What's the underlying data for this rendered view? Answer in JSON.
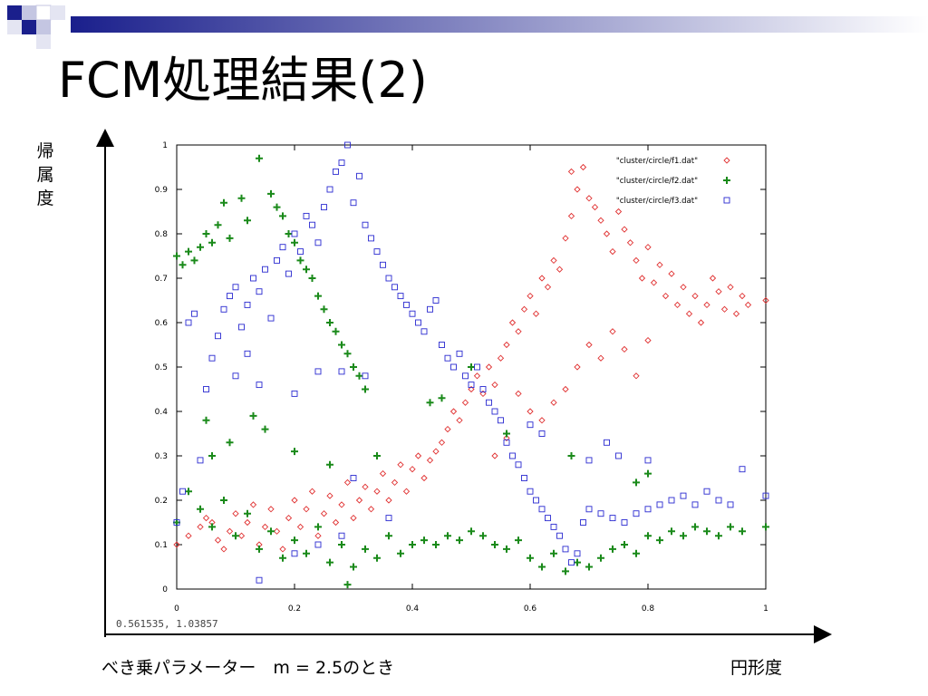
{
  "slide": {
    "title": "FCM処理結果(2)",
    "y_axis_name": "帰属度",
    "x_axis_name": "円形度",
    "coordinate_readout": "0.561535,  1.03857",
    "parameter_note": "べき乗パラメーター　m = 2.5のとき"
  },
  "colors": {
    "decor_blue": "#1a1f8c",
    "decor_light": "#c4c6e2",
    "series_f1": "#e03030",
    "series_f2": "#1a8a1a",
    "series_f3": "#2a2ad0"
  },
  "chart_data": {
    "type": "scatter",
    "xlim": [
      0,
      1
    ],
    "ylim": [
      0,
      1
    ],
    "x_ticks": [
      "0",
      "0.2",
      "0.4",
      "0.6",
      "0.8",
      "1"
    ],
    "y_ticks": [
      "0",
      "0.1",
      "0.2",
      "0.3",
      "0.4",
      "0.5",
      "0.6",
      "0.7",
      "0.8",
      "0.9",
      "1"
    ],
    "legend_position": "top-right",
    "series": [
      {
        "name": "\"cluster/circle/f1.dat\"",
        "marker": "diamond",
        "color": "#e03030",
        "points": [
          [
            0.0,
            0.1
          ],
          [
            0.02,
            0.12
          ],
          [
            0.04,
            0.14
          ],
          [
            0.05,
            0.16
          ],
          [
            0.06,
            0.15
          ],
          [
            0.07,
            0.11
          ],
          [
            0.08,
            0.09
          ],
          [
            0.09,
            0.13
          ],
          [
            0.1,
            0.17
          ],
          [
            0.11,
            0.12
          ],
          [
            0.12,
            0.15
          ],
          [
            0.13,
            0.19
          ],
          [
            0.14,
            0.1
          ],
          [
            0.15,
            0.14
          ],
          [
            0.16,
            0.18
          ],
          [
            0.17,
            0.13
          ],
          [
            0.18,
            0.09
          ],
          [
            0.19,
            0.16
          ],
          [
            0.2,
            0.2
          ],
          [
            0.21,
            0.14
          ],
          [
            0.22,
            0.18
          ],
          [
            0.23,
            0.22
          ],
          [
            0.24,
            0.12
          ],
          [
            0.25,
            0.17
          ],
          [
            0.26,
            0.21
          ],
          [
            0.27,
            0.15
          ],
          [
            0.28,
            0.19
          ],
          [
            0.29,
            0.24
          ],
          [
            0.3,
            0.16
          ],
          [
            0.31,
            0.2
          ],
          [
            0.32,
            0.23
          ],
          [
            0.33,
            0.18
          ],
          [
            0.34,
            0.22
          ],
          [
            0.35,
            0.26
          ],
          [
            0.36,
            0.2
          ],
          [
            0.37,
            0.24
          ],
          [
            0.38,
            0.28
          ],
          [
            0.39,
            0.22
          ],
          [
            0.4,
            0.27
          ],
          [
            0.41,
            0.3
          ],
          [
            0.42,
            0.25
          ],
          [
            0.43,
            0.29
          ],
          [
            0.44,
            0.31
          ],
          [
            0.45,
            0.33
          ],
          [
            0.46,
            0.36
          ],
          [
            0.47,
            0.4
          ],
          [
            0.48,
            0.38
          ],
          [
            0.49,
            0.42
          ],
          [
            0.5,
            0.45
          ],
          [
            0.51,
            0.48
          ],
          [
            0.52,
            0.44
          ],
          [
            0.53,
            0.5
          ],
          [
            0.54,
            0.46
          ],
          [
            0.55,
            0.52
          ],
          [
            0.56,
            0.55
          ],
          [
            0.57,
            0.6
          ],
          [
            0.58,
            0.58
          ],
          [
            0.59,
            0.63
          ],
          [
            0.6,
            0.66
          ],
          [
            0.61,
            0.62
          ],
          [
            0.62,
            0.7
          ],
          [
            0.63,
            0.68
          ],
          [
            0.64,
            0.74
          ],
          [
            0.65,
            0.72
          ],
          [
            0.66,
            0.79
          ],
          [
            0.67,
            0.84
          ],
          [
            0.67,
            0.94
          ],
          [
            0.68,
            0.9
          ],
          [
            0.69,
            0.95
          ],
          [
            0.7,
            0.88
          ],
          [
            0.71,
            0.86
          ],
          [
            0.72,
            0.83
          ],
          [
            0.73,
            0.8
          ],
          [
            0.74,
            0.76
          ],
          [
            0.75,
            0.85
          ],
          [
            0.76,
            0.81
          ],
          [
            0.77,
            0.78
          ],
          [
            0.78,
            0.74
          ],
          [
            0.79,
            0.7
          ],
          [
            0.8,
            0.77
          ],
          [
            0.81,
            0.69
          ],
          [
            0.82,
            0.73
          ],
          [
            0.83,
            0.66
          ],
          [
            0.84,
            0.71
          ],
          [
            0.85,
            0.64
          ],
          [
            0.86,
            0.68
          ],
          [
            0.87,
            0.62
          ],
          [
            0.88,
            0.66
          ],
          [
            0.89,
            0.6
          ],
          [
            0.9,
            0.64
          ],
          [
            0.91,
            0.7
          ],
          [
            0.92,
            0.67
          ],
          [
            0.93,
            0.63
          ],
          [
            0.94,
            0.68
          ],
          [
            0.95,
            0.62
          ],
          [
            0.96,
            0.66
          ],
          [
            0.97,
            0.64
          ],
          [
            1.0,
            0.65
          ],
          [
            0.62,
            0.38
          ],
          [
            0.64,
            0.42
          ],
          [
            0.66,
            0.45
          ],
          [
            0.68,
            0.5
          ],
          [
            0.7,
            0.55
          ],
          [
            0.72,
            0.52
          ],
          [
            0.74,
            0.58
          ],
          [
            0.76,
            0.54
          ],
          [
            0.78,
            0.48
          ],
          [
            0.8,
            0.56
          ],
          [
            0.58,
            0.44
          ],
          [
            0.6,
            0.4
          ],
          [
            0.56,
            0.34
          ],
          [
            0.54,
            0.3
          ]
        ]
      },
      {
        "name": "\"cluster/circle/f2.dat\"",
        "marker": "plus",
        "color": "#1a8a1a",
        "points": [
          [
            0.0,
            0.75
          ],
          [
            0.01,
            0.73
          ],
          [
            0.02,
            0.76
          ],
          [
            0.03,
            0.74
          ],
          [
            0.04,
            0.77
          ],
          [
            0.05,
            0.8
          ],
          [
            0.06,
            0.78
          ],
          [
            0.07,
            0.82
          ],
          [
            0.08,
            0.87
          ],
          [
            0.09,
            0.79
          ],
          [
            0.11,
            0.88
          ],
          [
            0.12,
            0.83
          ],
          [
            0.14,
            0.97
          ],
          [
            0.16,
            0.89
          ],
          [
            0.17,
            0.86
          ],
          [
            0.18,
            0.84
          ],
          [
            0.19,
            0.8
          ],
          [
            0.2,
            0.78
          ],
          [
            0.21,
            0.74
          ],
          [
            0.22,
            0.72
          ],
          [
            0.23,
            0.7
          ],
          [
            0.24,
            0.66
          ],
          [
            0.25,
            0.63
          ],
          [
            0.26,
            0.6
          ],
          [
            0.27,
            0.58
          ],
          [
            0.28,
            0.55
          ],
          [
            0.29,
            0.53
          ],
          [
            0.3,
            0.5
          ],
          [
            0.31,
            0.48
          ],
          [
            0.32,
            0.45
          ],
          [
            0.05,
            0.38
          ],
          [
            0.06,
            0.3
          ],
          [
            0.09,
            0.33
          ],
          [
            0.13,
            0.39
          ],
          [
            0.15,
            0.36
          ],
          [
            0.2,
            0.31
          ],
          [
            0.26,
            0.28
          ],
          [
            0.34,
            0.3
          ],
          [
            0.0,
            0.15
          ],
          [
            0.02,
            0.22
          ],
          [
            0.04,
            0.18
          ],
          [
            0.06,
            0.14
          ],
          [
            0.08,
            0.2
          ],
          [
            0.1,
            0.12
          ],
          [
            0.12,
            0.17
          ],
          [
            0.14,
            0.09
          ],
          [
            0.16,
            0.13
          ],
          [
            0.18,
            0.07
          ],
          [
            0.2,
            0.11
          ],
          [
            0.22,
            0.08
          ],
          [
            0.24,
            0.14
          ],
          [
            0.26,
            0.06
          ],
          [
            0.28,
            0.1
          ],
          [
            0.29,
            0.01
          ],
          [
            0.3,
            0.05
          ],
          [
            0.32,
            0.09
          ],
          [
            0.34,
            0.07
          ],
          [
            0.36,
            0.12
          ],
          [
            0.38,
            0.08
          ],
          [
            0.4,
            0.1
          ],
          [
            0.42,
            0.11
          ],
          [
            0.44,
            0.1
          ],
          [
            0.46,
            0.12
          ],
          [
            0.48,
            0.11
          ],
          [
            0.5,
            0.13
          ],
          [
            0.52,
            0.12
          ],
          [
            0.54,
            0.1
          ],
          [
            0.56,
            0.09
          ],
          [
            0.58,
            0.11
          ],
          [
            0.6,
            0.07
          ],
          [
            0.62,
            0.05
          ],
          [
            0.64,
            0.08
          ],
          [
            0.66,
            0.04
          ],
          [
            0.68,
            0.06
          ],
          [
            0.7,
            0.05
          ],
          [
            0.72,
            0.07
          ],
          [
            0.74,
            0.09
          ],
          [
            0.76,
            0.1
          ],
          [
            0.78,
            0.08
          ],
          [
            0.8,
            0.12
          ],
          [
            0.82,
            0.11
          ],
          [
            0.84,
            0.13
          ],
          [
            0.86,
            0.12
          ],
          [
            0.88,
            0.14
          ],
          [
            0.9,
            0.13
          ],
          [
            0.92,
            0.12
          ],
          [
            0.94,
            0.14
          ],
          [
            0.96,
            0.13
          ],
          [
            1.0,
            0.14
          ],
          [
            0.45,
            0.43
          ],
          [
            0.43,
            0.42
          ],
          [
            0.5,
            0.5
          ],
          [
            0.56,
            0.35
          ],
          [
            0.67,
            0.3
          ],
          [
            0.78,
            0.24
          ],
          [
            0.8,
            0.26
          ]
        ]
      },
      {
        "name": "\"cluster/circle/f3.dat\"",
        "marker": "square",
        "color": "#2a2ad0",
        "points": [
          [
            0.0,
            0.15
          ],
          [
            0.01,
            0.22
          ],
          [
            0.02,
            0.6
          ],
          [
            0.03,
            0.62
          ],
          [
            0.04,
            0.29
          ],
          [
            0.05,
            0.45
          ],
          [
            0.06,
            0.52
          ],
          [
            0.07,
            0.57
          ],
          [
            0.08,
            0.63
          ],
          [
            0.09,
            0.66
          ],
          [
            0.1,
            0.68
          ],
          [
            0.11,
            0.59
          ],
          [
            0.12,
            0.64
          ],
          [
            0.13,
            0.7
          ],
          [
            0.14,
            0.67
          ],
          [
            0.15,
            0.72
          ],
          [
            0.16,
            0.61
          ],
          [
            0.17,
            0.74
          ],
          [
            0.18,
            0.77
          ],
          [
            0.19,
            0.71
          ],
          [
            0.2,
            0.8
          ],
          [
            0.21,
            0.76
          ],
          [
            0.22,
            0.84
          ],
          [
            0.23,
            0.82
          ],
          [
            0.24,
            0.78
          ],
          [
            0.25,
            0.86
          ],
          [
            0.26,
            0.9
          ],
          [
            0.27,
            0.94
          ],
          [
            0.28,
            0.96
          ],
          [
            0.29,
            1.0
          ],
          [
            0.3,
            0.87
          ],
          [
            0.31,
            0.93
          ],
          [
            0.32,
            0.82
          ],
          [
            0.33,
            0.79
          ],
          [
            0.34,
            0.76
          ],
          [
            0.35,
            0.73
          ],
          [
            0.36,
            0.7
          ],
          [
            0.37,
            0.68
          ],
          [
            0.38,
            0.66
          ],
          [
            0.39,
            0.64
          ],
          [
            0.4,
            0.62
          ],
          [
            0.41,
            0.6
          ],
          [
            0.42,
            0.58
          ],
          [
            0.43,
            0.63
          ],
          [
            0.44,
            0.65
          ],
          [
            0.45,
            0.55
          ],
          [
            0.46,
            0.52
          ],
          [
            0.47,
            0.5
          ],
          [
            0.48,
            0.53
          ],
          [
            0.49,
            0.48
          ],
          [
            0.5,
            0.46
          ],
          [
            0.51,
            0.5
          ],
          [
            0.52,
            0.45
          ],
          [
            0.53,
            0.42
          ],
          [
            0.54,
            0.4
          ],
          [
            0.55,
            0.38
          ],
          [
            0.56,
            0.33
          ],
          [
            0.57,
            0.3
          ],
          [
            0.58,
            0.28
          ],
          [
            0.59,
            0.25
          ],
          [
            0.6,
            0.22
          ],
          [
            0.61,
            0.2
          ],
          [
            0.62,
            0.18
          ],
          [
            0.63,
            0.16
          ],
          [
            0.64,
            0.14
          ],
          [
            0.65,
            0.12
          ],
          [
            0.66,
            0.09
          ],
          [
            0.67,
            0.06
          ],
          [
            0.68,
            0.08
          ],
          [
            0.69,
            0.15
          ],
          [
            0.7,
            0.18
          ],
          [
            0.72,
            0.17
          ],
          [
            0.74,
            0.16
          ],
          [
            0.76,
            0.15
          ],
          [
            0.78,
            0.17
          ],
          [
            0.8,
            0.18
          ],
          [
            0.82,
            0.19
          ],
          [
            0.84,
            0.2
          ],
          [
            0.86,
            0.21
          ],
          [
            0.88,
            0.19
          ],
          [
            0.9,
            0.22
          ],
          [
            0.92,
            0.2
          ],
          [
            0.94,
            0.19
          ],
          [
            0.96,
            0.27
          ],
          [
            1.0,
            0.21
          ],
          [
            0.1,
            0.48
          ],
          [
            0.12,
            0.53
          ],
          [
            0.14,
            0.46
          ],
          [
            0.2,
            0.44
          ],
          [
            0.24,
            0.49
          ],
          [
            0.28,
            0.49
          ],
          [
            0.32,
            0.48
          ],
          [
            0.2,
            0.08
          ],
          [
            0.24,
            0.1
          ],
          [
            0.28,
            0.12
          ],
          [
            0.14,
            0.02
          ],
          [
            0.3,
            0.25
          ],
          [
            0.36,
            0.16
          ],
          [
            0.6,
            0.37
          ],
          [
            0.62,
            0.35
          ],
          [
            0.7,
            0.29
          ],
          [
            0.75,
            0.3
          ],
          [
            0.8,
            0.29
          ],
          [
            0.73,
            0.33
          ]
        ]
      }
    ]
  }
}
